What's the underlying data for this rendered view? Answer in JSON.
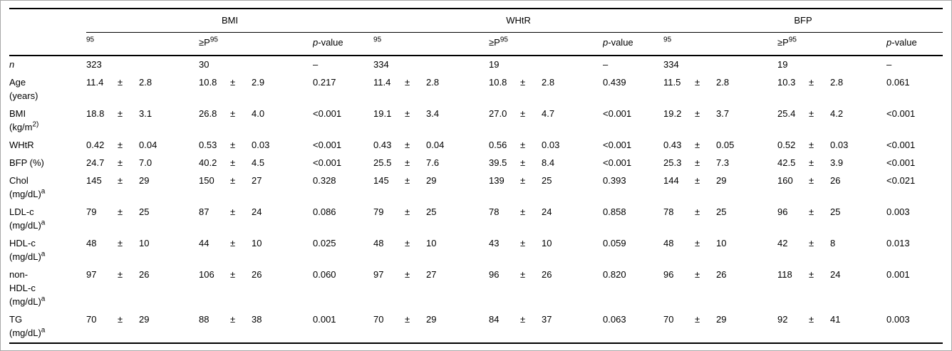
{
  "table": {
    "groups": [
      "BMI",
      "WHtR",
      "BFP"
    ],
    "subheader": {
      "low_sup": "95",
      "high_base": "≥P",
      "high_sup": "95",
      "pvalue_italic": "p",
      "pvalue_rest": "-value"
    },
    "plus_minus": "±",
    "rows": [
      {
        "label_lines": [
          "n"
        ],
        "italic": true,
        "cells": [
          "323",
          "30",
          "–",
          "334",
          "19",
          "–",
          "334",
          "19",
          "–"
        ]
      },
      {
        "label_lines": [
          "Age",
          "(years)"
        ],
        "cells": [
          [
            "11.4",
            "2.8"
          ],
          [
            "10.8",
            "2.9"
          ],
          "0.217",
          [
            "11.4",
            "2.8"
          ],
          [
            "10.8",
            "2.8"
          ],
          "0.439",
          [
            "11.5",
            "2.8"
          ],
          [
            "10.3",
            "2.8"
          ],
          "0.061"
        ]
      },
      {
        "label_lines": [
          "BMI",
          "(kg/m^2)"
        ],
        "cells": [
          [
            "18.8",
            "3.1"
          ],
          [
            "26.8",
            "4.0"
          ],
          "<0.001",
          [
            "19.1",
            "3.4"
          ],
          [
            "27.0",
            "4.7"
          ],
          "<0.001",
          [
            "19.2",
            "3.7"
          ],
          [
            "25.4",
            "4.2"
          ],
          "<0.001"
        ]
      },
      {
        "label_lines": [
          "WHtR"
        ],
        "cells": [
          [
            "0.42",
            "0.04"
          ],
          [
            "0.53",
            "0.03"
          ],
          "<0.001",
          [
            "0.43",
            "0.04"
          ],
          [
            "0.56",
            "0.03"
          ],
          "<0.001",
          [
            "0.43",
            "0.05"
          ],
          [
            "0.52",
            "0.03"
          ],
          "<0.001"
        ]
      },
      {
        "label_lines": [
          "BFP (%)"
        ],
        "cells": [
          [
            "24.7",
            "7.0"
          ],
          [
            "40.2",
            "4.5"
          ],
          "<0.001",
          [
            "25.5",
            "7.6"
          ],
          [
            "39.5",
            "8.4"
          ],
          "<0.001",
          [
            "25.3",
            "7.3"
          ],
          [
            "42.5",
            "3.9"
          ],
          "<0.001"
        ]
      },
      {
        "label_lines": [
          "Chol",
          "(mg/dL)^a"
        ],
        "cells": [
          [
            "145",
            "29"
          ],
          [
            "150",
            "27"
          ],
          "0.328",
          [
            "145",
            "29"
          ],
          [
            "139",
            "25"
          ],
          "0.393",
          [
            "144",
            "29"
          ],
          [
            "160",
            "26"
          ],
          "<0.021"
        ]
      },
      {
        "label_lines": [
          "LDL-c",
          "(mg/dL)^a"
        ],
        "cells": [
          [
            "79",
            "25"
          ],
          [
            "87",
            "24"
          ],
          "0.086",
          [
            "79",
            "25"
          ],
          [
            "78",
            "24"
          ],
          "0.858",
          [
            "78",
            "25"
          ],
          [
            "96",
            "25"
          ],
          "0.003"
        ]
      },
      {
        "label_lines": [
          "HDL-c",
          "(mg/dL)^a"
        ],
        "cells": [
          [
            "48",
            "10"
          ],
          [
            "44",
            "10"
          ],
          "0.025",
          [
            "48",
            "10"
          ],
          [
            "43",
            "10"
          ],
          "0.059",
          [
            "48",
            "10"
          ],
          [
            "42",
            "8"
          ],
          "0.013"
        ]
      },
      {
        "label_lines": [
          "non-",
          "HDL-c",
          "(mg/dL)^a"
        ],
        "cells": [
          [
            "97",
            "26"
          ],
          [
            "106",
            "26"
          ],
          "0.060",
          [
            "97",
            "27"
          ],
          [
            "96",
            "26"
          ],
          "0.820",
          [
            "96",
            "26"
          ],
          [
            "118",
            "24"
          ],
          "0.001"
        ]
      },
      {
        "label_lines": [
          "TG",
          "(mg/dL)^a"
        ],
        "cells": [
          [
            "70",
            "29"
          ],
          [
            "88",
            "38"
          ],
          "0.001",
          [
            "70",
            "29"
          ],
          [
            "84",
            "37"
          ],
          "0.063",
          [
            "70",
            "29"
          ],
          [
            "92",
            "41"
          ],
          "0.003"
        ]
      }
    ]
  }
}
